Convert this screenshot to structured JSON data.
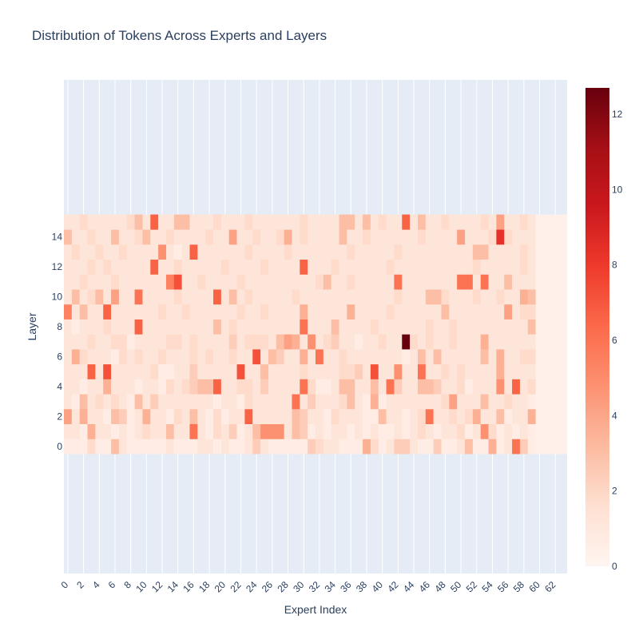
{
  "chart_data": {
    "type": "heatmap",
    "title": "Distribution of Tokens Across Experts and Layers",
    "xlabel": "Expert Index",
    "ylabel": "Layer",
    "x_range": [
      -0.5,
      63.5
    ],
    "y_range": [
      -8.5,
      24.5
    ],
    "x_tick_labels": [
      "0",
      "2",
      "4",
      "6",
      "8",
      "10",
      "12",
      "14",
      "16",
      "18",
      "20",
      "22",
      "24",
      "26",
      "28",
      "30",
      "32",
      "34",
      "36",
      "38",
      "40",
      "42",
      "44",
      "46",
      "48",
      "50",
      "52",
      "54",
      "56",
      "58",
      "60",
      "62"
    ],
    "y_tick_labels": [
      "0",
      "2",
      "4",
      "6",
      "8",
      "10",
      "12",
      "14"
    ],
    "colorbar": {
      "min": 0,
      "max": 12.7,
      "tick_labels": [
        "0",
        "2",
        "4",
        "6",
        "8",
        "10",
        "12"
      ],
      "colorscale": [
        "#fff5f0",
        "#fee0d2",
        "#fcbba1",
        "#fc9272",
        "#fb6a4a",
        "#ef3b2c",
        "#cb181d",
        "#a50f15",
        "#67000d"
      ]
    },
    "layers": 16,
    "experts": 64,
    "values": [
      [
        0.6,
        0.6,
        0.6,
        1.8,
        0.6,
        0.6,
        3.0,
        1.2,
        0.6,
        0.6,
        0.6,
        0.6,
        0.6,
        1.2,
        0.6,
        0.6,
        0.6,
        1.2,
        1.2,
        0.6,
        1.2,
        0.6,
        0.6,
        1.2,
        2.4,
        1.2,
        0.6,
        0.6,
        0.6,
        0.6,
        0.6,
        2.4,
        1.8,
        1.2,
        1.2,
        0.6,
        0.6,
        0.6,
        3.6,
        1.8,
        0.6,
        1.2,
        2.4,
        2.4,
        1.2,
        0.6,
        0.6,
        2.4,
        0.6,
        0.6,
        1.2,
        3.0,
        0.6,
        0.6,
        3.6,
        0.6,
        1.2,
        6.0,
        2.4,
        0.6,
        0.3,
        0.3,
        0.3,
        0.3
      ],
      [
        1.2,
        1.2,
        0.6,
        3.6,
        1.2,
        1.2,
        0.6,
        1.2,
        0.6,
        1.2,
        1.8,
        1.2,
        1.2,
        3.0,
        1.2,
        1.2,
        6.0,
        1.2,
        0.6,
        1.8,
        1.2,
        2.4,
        0.6,
        1.2,
        3.0,
        4.8,
        4.8,
        4.8,
        1.2,
        3.0,
        2.4,
        0.6,
        1.2,
        0.6,
        1.2,
        1.2,
        0.6,
        1.2,
        0.6,
        1.2,
        0.6,
        0.6,
        1.2,
        0.6,
        1.2,
        1.8,
        1.2,
        0.6,
        1.2,
        1.2,
        1.8,
        0.6,
        1.2,
        4.8,
        1.8,
        0.6,
        1.2,
        0.6,
        1.2,
        0.6,
        0.3,
        0.3,
        0.3,
        0.3
      ],
      [
        4.2,
        1.2,
        3.6,
        1.2,
        1.2,
        0.6,
        3.0,
        2.4,
        0.6,
        1.2,
        3.6,
        1.2,
        1.2,
        0.6,
        1.8,
        1.2,
        3.0,
        1.2,
        0.6,
        1.8,
        0.6,
        1.2,
        1.2,
        6.6,
        1.2,
        1.2,
        1.2,
        1.2,
        1.2,
        3.0,
        2.4,
        1.2,
        1.2,
        0.6,
        1.8,
        1.2,
        1.2,
        1.2,
        0.6,
        0.6,
        3.0,
        1.2,
        1.2,
        0.6,
        1.2,
        1.8,
        6.0,
        1.2,
        1.2,
        1.8,
        1.2,
        1.8,
        3.6,
        1.2,
        1.2,
        3.0,
        0.6,
        1.2,
        1.2,
        3.6,
        0.3,
        0.3,
        0.3,
        0.3
      ],
      [
        1.2,
        0.6,
        3.0,
        1.2,
        1.8,
        1.2,
        1.8,
        1.2,
        0.6,
        3.0,
        1.2,
        2.4,
        1.2,
        1.2,
        1.2,
        1.2,
        1.2,
        1.2,
        1.2,
        0.6,
        1.2,
        1.2,
        0.6,
        1.8,
        1.2,
        1.2,
        1.2,
        1.2,
        1.2,
        6.0,
        1.2,
        2.4,
        1.2,
        1.2,
        1.2,
        1.8,
        3.0,
        1.2,
        0.6,
        3.6,
        0.6,
        1.2,
        1.2,
        1.2,
        1.2,
        1.2,
        1.2,
        1.2,
        1.8,
        4.2,
        1.2,
        1.2,
        1.2,
        3.0,
        1.2,
        1.2,
        1.8,
        1.2,
        1.2,
        0.6,
        0.3,
        0.3,
        0.3,
        0.3
      ],
      [
        1.2,
        1.2,
        0.6,
        1.2,
        1.2,
        3.6,
        1.2,
        1.2,
        1.2,
        0.6,
        1.2,
        1.2,
        0.6,
        1.8,
        1.2,
        1.8,
        2.4,
        3.0,
        3.0,
        6.6,
        1.2,
        1.2,
        1.8,
        1.8,
        1.2,
        2.4,
        1.2,
        1.2,
        1.2,
        1.2,
        6.0,
        1.8,
        0.6,
        0.6,
        1.2,
        3.0,
        3.0,
        1.2,
        1.2,
        3.0,
        1.2,
        6.0,
        2.4,
        1.2,
        1.2,
        3.0,
        3.0,
        2.4,
        1.2,
        1.2,
        1.8,
        0.6,
        1.2,
        1.2,
        1.2,
        4.8,
        1.2,
        6.6,
        1.2,
        1.8,
        0.3,
        0.3,
        0.3,
        0.3
      ],
      [
        1.2,
        1.2,
        1.2,
        6.6,
        1.2,
        7.2,
        1.2,
        1.2,
        1.2,
        1.2,
        1.2,
        1.8,
        0.6,
        0.6,
        1.2,
        1.2,
        2.4,
        1.2,
        1.2,
        1.2,
        1.2,
        1.2,
        7.2,
        1.2,
        1.2,
        3.0,
        1.2,
        1.2,
        1.2,
        1.2,
        1.8,
        1.2,
        1.2,
        1.2,
        1.2,
        1.8,
        1.8,
        2.4,
        1.2,
        7.2,
        1.2,
        1.2,
        4.8,
        1.2,
        1.2,
        6.0,
        1.2,
        1.2,
        1.8,
        1.2,
        1.8,
        1.2,
        1.2,
        1.2,
        1.2,
        3.6,
        1.2,
        1.2,
        1.2,
        1.2,
        0.3,
        0.3,
        0.3,
        0.3
      ],
      [
        1.2,
        3.6,
        1.8,
        1.2,
        1.2,
        1.2,
        0.6,
        1.8,
        1.2,
        1.8,
        1.2,
        1.2,
        1.8,
        1.2,
        1.2,
        1.2,
        1.8,
        1.2,
        1.8,
        1.2,
        1.2,
        1.8,
        1.2,
        1.2,
        7.2,
        1.2,
        3.0,
        2.4,
        1.2,
        1.2,
        3.6,
        1.2,
        6.0,
        1.2,
        1.2,
        1.8,
        1.2,
        1.2,
        1.2,
        1.2,
        1.2,
        1.2,
        1.2,
        0.6,
        1.2,
        3.0,
        1.2,
        3.0,
        1.2,
        1.2,
        1.2,
        1.2,
        1.2,
        3.0,
        1.2,
        3.6,
        1.2,
        1.2,
        1.8,
        1.8,
        0.3,
        0.3,
        0.3,
        0.3
      ],
      [
        1.2,
        1.2,
        1.2,
        1.8,
        1.2,
        1.2,
        1.8,
        1.8,
        0.6,
        1.2,
        1.2,
        1.2,
        1.2,
        1.8,
        1.8,
        1.2,
        1.8,
        1.2,
        1.2,
        1.2,
        1.2,
        2.4,
        1.2,
        1.8,
        1.8,
        1.8,
        1.2,
        3.0,
        4.2,
        3.6,
        1.2,
        4.8,
        1.2,
        1.8,
        2.4,
        1.2,
        1.2,
        0.6,
        1.2,
        1.2,
        1.8,
        1.2,
        1.2,
        12.7,
        1.8,
        1.2,
        1.8,
        1.2,
        1.2,
        1.8,
        1.2,
        1.2,
        1.2,
        3.6,
        1.2,
        1.2,
        1.2,
        1.2,
        1.2,
        1.2,
        0.3,
        0.3,
        0.3,
        0.3
      ],
      [
        1.2,
        0.6,
        1.2,
        1.2,
        1.2,
        1.8,
        1.2,
        1.2,
        1.2,
        6.6,
        1.2,
        1.2,
        1.2,
        1.2,
        1.2,
        1.2,
        1.2,
        1.2,
        1.2,
        3.0,
        1.2,
        1.8,
        1.2,
        1.2,
        1.2,
        1.2,
        1.2,
        1.2,
        1.2,
        1.2,
        6.0,
        1.2,
        1.2,
        1.2,
        3.0,
        1.2,
        1.2,
        1.2,
        1.2,
        1.8,
        1.2,
        1.2,
        1.2,
        1.2,
        1.2,
        1.2,
        1.8,
        1.2,
        1.2,
        1.8,
        1.2,
        1.2,
        1.2,
        1.2,
        1.2,
        1.2,
        1.2,
        1.2,
        1.2,
        3.0,
        0.3,
        0.3,
        0.3,
        0.3
      ],
      [
        5.4,
        1.2,
        3.0,
        1.2,
        1.2,
        6.6,
        1.2,
        1.2,
        1.2,
        1.2,
        1.2,
        1.2,
        1.8,
        1.2,
        1.2,
        1.8,
        1.2,
        1.2,
        1.2,
        1.2,
        1.2,
        1.2,
        1.8,
        1.2,
        1.2,
        1.8,
        1.2,
        1.2,
        1.2,
        1.2,
        3.6,
        1.2,
        1.2,
        1.2,
        1.2,
        1.2,
        3.6,
        1.2,
        1.2,
        1.2,
        1.2,
        1.8,
        1.2,
        1.2,
        1.2,
        1.2,
        1.2,
        1.2,
        3.0,
        1.2,
        1.2,
        1.2,
        1.2,
        1.2,
        1.2,
        1.2,
        4.2,
        1.2,
        1.8,
        1.8,
        0.3,
        0.3,
        0.3,
        0.3
      ],
      [
        1.2,
        3.0,
        1.2,
        1.8,
        3.0,
        1.2,
        4.2,
        1.2,
        1.2,
        6.0,
        1.2,
        1.2,
        1.2,
        1.2,
        1.8,
        1.2,
        1.2,
        1.2,
        1.2,
        6.6,
        1.2,
        3.0,
        1.2,
        1.8,
        1.2,
        1.2,
        1.2,
        1.2,
        1.2,
        1.8,
        1.2,
        1.2,
        1.2,
        1.2,
        1.2,
        1.2,
        1.2,
        1.2,
        1.2,
        1.2,
        1.2,
        1.2,
        1.8,
        1.2,
        1.2,
        1.2,
        3.0,
        3.0,
        1.8,
        1.2,
        1.2,
        1.2,
        1.8,
        1.2,
        1.2,
        1.8,
        1.2,
        1.2,
        3.6,
        3.0,
        0.3,
        0.3,
        0.3,
        0.3
      ],
      [
        1.2,
        1.2,
        1.8,
        1.2,
        1.2,
        1.2,
        1.8,
        1.2,
        1.2,
        1.2,
        1.2,
        1.2,
        1.2,
        5.4,
        7.2,
        1.2,
        1.2,
        1.8,
        1.2,
        1.2,
        1.2,
        1.2,
        1.8,
        1.2,
        1.2,
        1.2,
        1.2,
        1.2,
        1.2,
        1.2,
        1.2,
        1.2,
        1.8,
        3.0,
        1.2,
        1.2,
        1.8,
        1.2,
        1.2,
        1.2,
        1.2,
        1.2,
        6.0,
        1.2,
        1.2,
        1.2,
        1.2,
        1.2,
        1.2,
        1.2,
        6.0,
        6.0,
        1.2,
        6.0,
        1.2,
        1.2,
        3.0,
        1.2,
        1.2,
        1.2,
        0.3,
        0.3,
        0.3,
        0.3
      ],
      [
        1.2,
        1.2,
        1.2,
        1.8,
        1.2,
        1.8,
        1.2,
        1.2,
        1.2,
        1.2,
        1.2,
        6.6,
        1.2,
        1.2,
        1.8,
        1.2,
        1.2,
        1.2,
        1.2,
        1.2,
        1.8,
        1.2,
        1.2,
        1.2,
        1.2,
        1.8,
        1.2,
        1.2,
        1.2,
        1.2,
        6.6,
        1.2,
        1.2,
        1.2,
        1.8,
        1.2,
        1.2,
        1.2,
        1.2,
        1.2,
        1.2,
        1.8,
        1.2,
        1.2,
        1.2,
        1.2,
        1.2,
        1.2,
        1.2,
        1.2,
        1.2,
        1.2,
        1.8,
        1.2,
        1.2,
        1.2,
        1.2,
        1.2,
        1.8,
        1.2,
        0.3,
        0.3,
        0.3,
        0.3
      ],
      [
        1.2,
        1.8,
        1.2,
        1.2,
        1.8,
        1.2,
        1.2,
        1.8,
        1.2,
        1.2,
        1.2,
        1.2,
        4.8,
        1.2,
        0.6,
        1.2,
        6.6,
        1.2,
        1.2,
        1.2,
        1.2,
        1.2,
        1.2,
        1.8,
        1.2,
        1.2,
        1.2,
        1.2,
        1.8,
        1.2,
        1.2,
        1.2,
        1.2,
        1.2,
        1.2,
        1.2,
        1.8,
        1.2,
        1.2,
        1.2,
        1.2,
        1.2,
        1.8,
        1.2,
        1.2,
        1.2,
        1.2,
        1.2,
        1.2,
        1.2,
        1.2,
        1.2,
        3.0,
        3.0,
        1.2,
        1.2,
        1.2,
        1.2,
        1.8,
        1.2,
        0.3,
        0.3,
        0.3,
        0.3
      ],
      [
        3.0,
        1.2,
        1.2,
        1.8,
        1.2,
        1.2,
        3.0,
        1.2,
        1.2,
        1.8,
        3.0,
        1.2,
        1.2,
        1.8,
        1.2,
        1.2,
        1.2,
        1.2,
        1.8,
        1.2,
        1.2,
        4.2,
        1.2,
        1.2,
        1.8,
        1.2,
        1.2,
        1.8,
        3.6,
        1.2,
        1.8,
        1.2,
        1.2,
        1.2,
        1.2,
        3.0,
        1.2,
        1.2,
        1.8,
        1.2,
        1.2,
        1.2,
        1.2,
        1.2,
        1.2,
        1.8,
        1.2,
        1.2,
        1.2,
        1.2,
        4.2,
        1.2,
        1.2,
        1.2,
        1.8,
        8.4,
        1.8,
        1.2,
        1.2,
        1.2,
        0.3,
        0.3,
        0.3,
        0.3
      ],
      [
        1.2,
        1.2,
        1.8,
        1.2,
        1.2,
        1.2,
        1.2,
        1.2,
        1.8,
        3.0,
        1.2,
        6.6,
        1.2,
        1.2,
        3.0,
        3.0,
        1.2,
        1.2,
        1.2,
        1.8,
        1.2,
        1.2,
        1.2,
        1.8,
        1.2,
        1.2,
        1.2,
        1.2,
        1.2,
        1.2,
        1.8,
        1.2,
        1.2,
        1.2,
        1.2,
        3.0,
        3.0,
        1.2,
        3.0,
        1.2,
        1.8,
        1.2,
        1.2,
        6.6,
        1.2,
        3.0,
        1.2,
        1.2,
        1.8,
        1.2,
        1.2,
        1.2,
        1.2,
        1.8,
        1.2,
        4.2,
        1.2,
        1.2,
        1.8,
        1.2,
        0.3,
        0.3,
        0.3,
        0.3
      ]
    ]
  }
}
